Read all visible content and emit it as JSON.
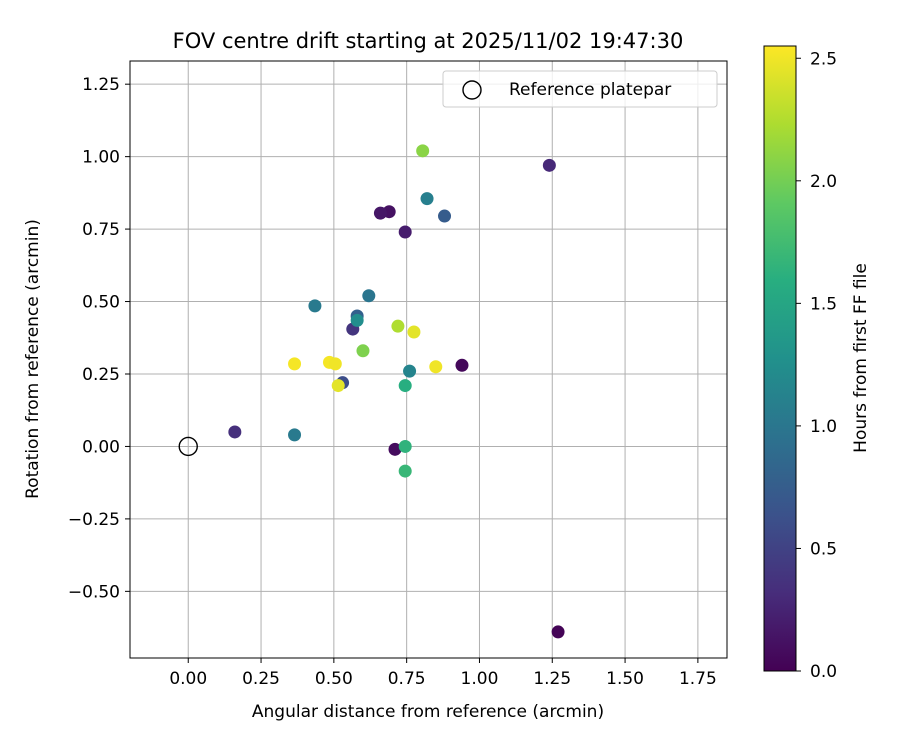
{
  "chart_data": {
    "type": "scatter",
    "title": "FOV centre drift starting at 2025/11/02 19:47:30",
    "xlabel": "Angular distance from reference (arcmin)",
    "ylabel": "Rotation from reference (arcmin)",
    "xlim": [
      -0.2,
      1.85
    ],
    "ylim": [
      -0.73,
      1.33
    ],
    "xticks": [
      0.0,
      0.25,
      0.5,
      0.75,
      1.0,
      1.25,
      1.5,
      1.75
    ],
    "xtick_labels": [
      "0.00",
      "0.25",
      "0.50",
      "0.75",
      "1.00",
      "1.25",
      "1.50",
      "1.75"
    ],
    "yticks": [
      -0.5,
      -0.25,
      0.0,
      0.25,
      0.5,
      0.75,
      1.0,
      1.25
    ],
    "ytick_labels": [
      "−0.50",
      "−0.25",
      "0.00",
      "0.25",
      "0.50",
      "0.75",
      "1.00",
      "1.25"
    ],
    "grid": true,
    "legend": {
      "position": "top-right",
      "label": "Reference platepar"
    },
    "reference_point": {
      "x": 0.0,
      "y": 0.0
    },
    "colorbar": {
      "label": "Hours from first FF file",
      "range": [
        0.0,
        2.55
      ],
      "ticks": [
        0.0,
        0.5,
        1.0,
        1.5,
        2.0,
        2.5
      ],
      "tick_labels": [
        "0.0",
        "0.5",
        "1.0",
        "1.5",
        "2.0",
        "2.5"
      ]
    },
    "points": [
      {
        "x": 1.27,
        "y": -0.64,
        "c": 0.02
      },
      {
        "x": 0.94,
        "y": 0.28,
        "c": 0.05
      },
      {
        "x": 0.71,
        "y": -0.01,
        "c": 0.08
      },
      {
        "x": 0.69,
        "y": 0.81,
        "c": 0.12
      },
      {
        "x": 0.66,
        "y": 0.805,
        "c": 0.16
      },
      {
        "x": 0.745,
        "y": 0.74,
        "c": 0.2
      },
      {
        "x": 1.24,
        "y": 0.97,
        "c": 0.3
      },
      {
        "x": 0.16,
        "y": 0.05,
        "c": 0.35
      },
      {
        "x": 0.565,
        "y": 0.405,
        "c": 0.4
      },
      {
        "x": 0.53,
        "y": 0.22,
        "c": 0.6
      },
      {
        "x": 0.88,
        "y": 0.795,
        "c": 0.75
      },
      {
        "x": 0.58,
        "y": 0.45,
        "c": 0.8
      },
      {
        "x": 0.62,
        "y": 0.52,
        "c": 1.0
      },
      {
        "x": 0.435,
        "y": 0.485,
        "c": 1.05
      },
      {
        "x": 0.365,
        "y": 0.04,
        "c": 1.05
      },
      {
        "x": 0.82,
        "y": 0.855,
        "c": 1.1
      },
      {
        "x": 0.76,
        "y": 0.26,
        "c": 1.15
      },
      {
        "x": 0.58,
        "y": 0.435,
        "c": 1.25
      },
      {
        "x": 0.745,
        "y": 0.21,
        "c": 1.6
      },
      {
        "x": 0.745,
        "y": 0.0,
        "c": 1.65
      },
      {
        "x": 0.745,
        "y": -0.085,
        "c": 1.7
      },
      {
        "x": 0.6,
        "y": 0.33,
        "c": 2.05
      },
      {
        "x": 0.805,
        "y": 1.02,
        "c": 2.1
      },
      {
        "x": 0.72,
        "y": 0.415,
        "c": 2.25
      },
      {
        "x": 0.775,
        "y": 0.395,
        "c": 2.45
      },
      {
        "x": 0.85,
        "y": 0.275,
        "c": 2.5
      },
      {
        "x": 0.365,
        "y": 0.285,
        "c": 2.52
      },
      {
        "x": 0.485,
        "y": 0.29,
        "c": 2.52
      },
      {
        "x": 0.505,
        "y": 0.285,
        "c": 2.5
      },
      {
        "x": 0.515,
        "y": 0.21,
        "c": 2.45
      }
    ]
  }
}
